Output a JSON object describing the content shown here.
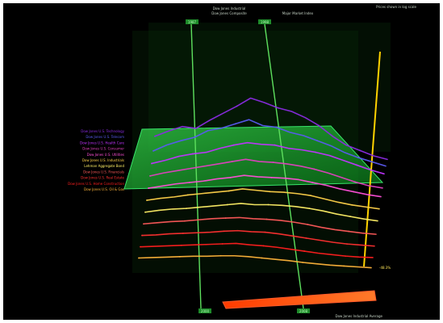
{
  "chart_data": {
    "type": "line",
    "title_lines": [
      "Dow Jones Industrial",
      "Dow Jones Composite",
      "Major Market Index"
    ],
    "top_right_note": "Prices shown in log scale",
    "bottom_note": "Dow Jones Industrial Average",
    "date_markers": {
      "top": [
        "1987",
        "1998"
      ],
      "bottom": [
        "2000",
        "2008"
      ]
    },
    "plane_color": "#1fae2f",
    "marker_color": "#4fcf4f",
    "right_callout": "-48.3%",
    "series": [
      {
        "name": "Dow Jones U.S. Technology",
        "color": "#8a2be2",
        "values": [
          0.52,
          0.58,
          0.63,
          0.61,
          0.7,
          0.78,
          0.86,
          0.95,
          0.9,
          0.84,
          0.8,
          0.73,
          0.64,
          0.52,
          0.42,
          0.36,
          0.3,
          0.26
        ]
      },
      {
        "name": "Dow Jones U.S. Telecom",
        "color": "#5a5af0",
        "values": [
          0.48,
          0.55,
          0.6,
          0.64,
          0.72,
          0.75,
          0.8,
          0.85,
          0.78,
          0.76,
          0.7,
          0.66,
          0.6,
          0.54,
          0.46,
          0.4,
          0.35,
          0.3
        ]
      },
      {
        "name": "Dow Jones U.S. Health Care",
        "color": "#c034ff",
        "values": [
          0.46,
          0.5,
          0.55,
          0.58,
          0.6,
          0.65,
          0.69,
          0.72,
          0.7,
          0.69,
          0.65,
          0.63,
          0.6,
          0.56,
          0.5,
          0.44,
          0.38,
          0.33
        ]
      },
      {
        "name": "Dow Jones U.S. Consumer",
        "color": "#e040c0",
        "values": [
          0.44,
          0.48,
          0.51,
          0.54,
          0.57,
          0.6,
          0.63,
          0.66,
          0.63,
          0.62,
          0.6,
          0.57,
          0.53,
          0.48,
          0.42,
          0.36,
          0.31,
          0.28
        ]
      },
      {
        "name": "Dow Jones U.S. Utilities",
        "color": "#ff4fd8",
        "values": [
          0.42,
          0.45,
          0.48,
          0.5,
          0.52,
          0.55,
          0.57,
          0.6,
          0.58,
          0.57,
          0.56,
          0.54,
          0.5,
          0.46,
          0.41,
          0.37,
          0.33,
          0.3
        ]
      },
      {
        "name": "Dow Jones U.S. Industrials",
        "color": "#ffd24a",
        "values": [
          0.4,
          0.43,
          0.45,
          0.48,
          0.5,
          0.52,
          0.54,
          0.57,
          0.55,
          0.53,
          0.52,
          0.5,
          0.47,
          0.42,
          0.37,
          0.33,
          0.3,
          0.27
        ]
      },
      {
        "name": "Lehman Aggregate Bond",
        "color": "#fff066",
        "values": [
          0.38,
          0.41,
          0.43,
          0.44,
          0.46,
          0.48,
          0.5,
          0.52,
          0.5,
          0.5,
          0.49,
          0.47,
          0.44,
          0.4,
          0.35,
          0.31,
          0.27,
          0.24
        ]
      },
      {
        "name": "Dow Jones U.S. Financials",
        "color": "#ff5a5a",
        "values": [
          0.36,
          0.38,
          0.4,
          0.41,
          0.43,
          0.45,
          0.46,
          0.47,
          0.45,
          0.44,
          0.42,
          0.39,
          0.35,
          0.3,
          0.26,
          0.23,
          0.2,
          0.18
        ]
      },
      {
        "name": "Dow Jones U.S. Real Estate",
        "color": "#ff3030",
        "values": [
          0.34,
          0.35,
          0.37,
          0.38,
          0.39,
          0.4,
          0.42,
          0.43,
          0.41,
          0.4,
          0.37,
          0.33,
          0.29,
          0.25,
          0.21,
          0.18,
          0.16,
          0.14
        ]
      },
      {
        "name": "Dow Jones U.S. Home Construction",
        "color": "#ff1f1f",
        "values": [
          0.32,
          0.33,
          0.34,
          0.35,
          0.36,
          0.37,
          0.38,
          0.39,
          0.36,
          0.34,
          0.31,
          0.27,
          0.23,
          0.19,
          0.16,
          0.13,
          0.11,
          0.1
        ]
      },
      {
        "name": "Dow Jones U.S. Oil & Gas",
        "color": "#ffb43a",
        "values": [
          0.3,
          0.31,
          0.32,
          0.33,
          0.34,
          0.34,
          0.35,
          0.35,
          0.33,
          0.3,
          0.27,
          0.24,
          0.2,
          0.17,
          0.14,
          0.12,
          0.1,
          0.08
        ]
      }
    ]
  }
}
